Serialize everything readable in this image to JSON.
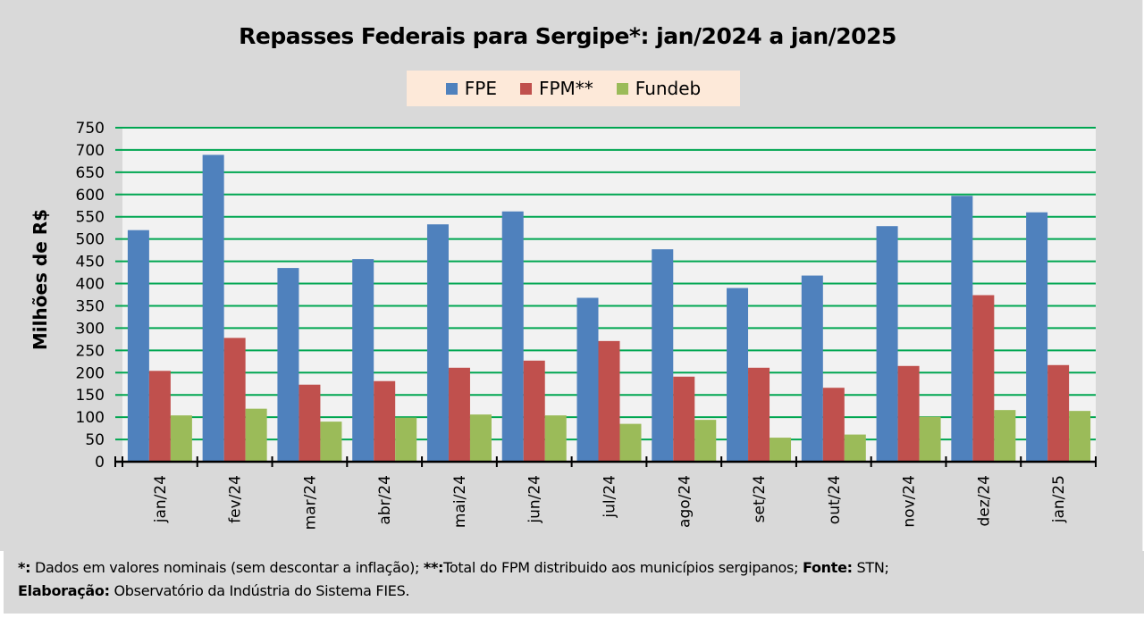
{
  "chart_data": {
    "type": "bar",
    "title": "Repasses Federais para Sergipe*: jan/2024 a jan/2025",
    "xlabel": "",
    "ylabel": "Milhões de R$",
    "ylim": [
      0,
      750
    ],
    "yticks": [
      0,
      50,
      100,
      150,
      200,
      250,
      300,
      350,
      400,
      450,
      500,
      550,
      600,
      650,
      700,
      750
    ],
    "grid": true,
    "legend_position": "top-center",
    "categories": [
      "jan/24",
      "fev/24",
      "mar/24",
      "abr/24",
      "mai/24",
      "jun/24",
      "jul/24",
      "ago/24",
      "set/24",
      "out/24",
      "nov/24",
      "dez/24",
      "jan/25"
    ],
    "series": [
      {
        "name": "FPE",
        "color": "#4f81bd",
        "values": [
          520,
          689,
          435,
          455,
          533,
          562,
          368,
          477,
          390,
          418,
          529,
          597,
          560
        ]
      },
      {
        "name": "FPM**",
        "color": "#c0504d",
        "values": [
          204,
          278,
          173,
          181,
          211,
          227,
          271,
          191,
          211,
          166,
          215,
          374,
          217
        ]
      },
      {
        "name": "Fundeb",
        "color": "#9bbb59",
        "values": [
          104,
          119,
          90,
          99,
          106,
          104,
          85,
          94,
          54,
          61,
          101,
          116,
          114
        ]
      }
    ],
    "gridline_color": "#00a651",
    "plot_background": "#f2f2f2"
  },
  "footnote": {
    "line1": [
      {
        "text": "*:",
        "bold": true
      },
      {
        "text": " Dados em valores nominais (sem descontar a inflação); ",
        "bold": false
      },
      {
        "text": "**:",
        "bold": true
      },
      {
        "text": "Total  do FPM distribuido aos municípios sergipanos; ",
        "bold": false
      },
      {
        "text": "Fonte:",
        "bold": true
      },
      {
        "text": " STN;",
        "bold": false
      }
    ],
    "line2": [
      {
        "text": "Elaboração:",
        "bold": true
      },
      {
        "text": " Observatório da Indústria do Sistema FIES.",
        "bold": false
      }
    ]
  }
}
